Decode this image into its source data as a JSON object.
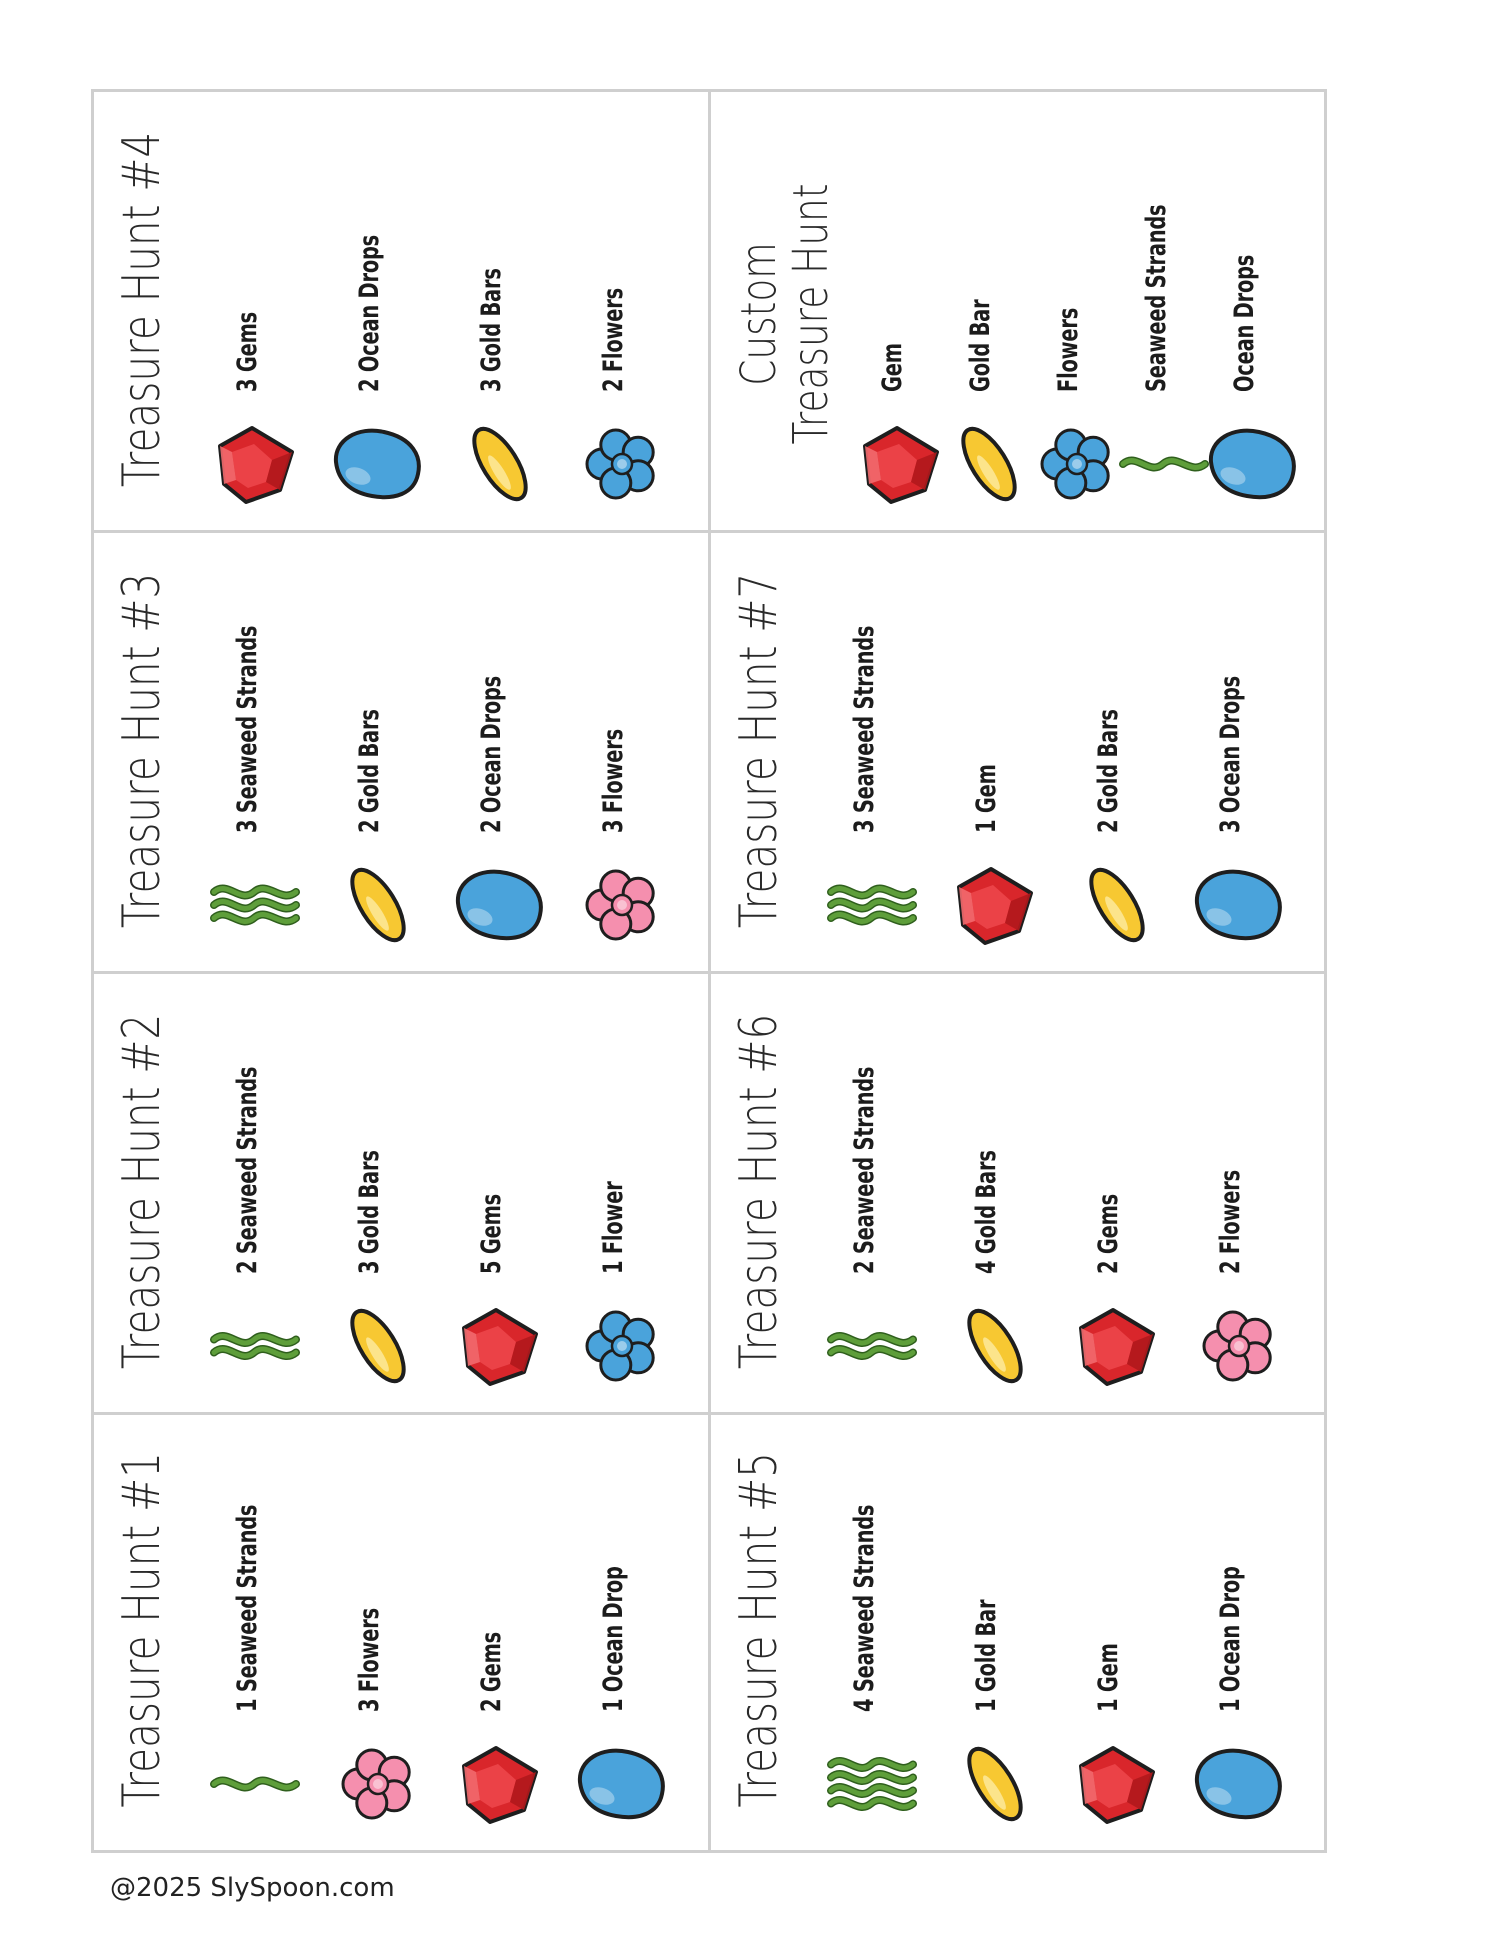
{
  "footer": "@2025 SlySpoon.com",
  "colors": {
    "gem": "#d9262b",
    "drop": "#4aa3db",
    "gold": "#f7c832",
    "flower_blue": "#4aa3db",
    "flower_pink": "#f58fae",
    "seaweed": "#5e9e3a",
    "border": "#cfcfcf"
  },
  "cards": [
    {
      "title": "Treasure Hunt #1",
      "items": [
        {
          "icon": "seaweed-1-icon",
          "label": "1 Seaweed Strands"
        },
        {
          "icon": "flower-pink-icon",
          "label": "3 Flowers"
        },
        {
          "icon": "gem-icon",
          "label": "2 Gems"
        },
        {
          "icon": "ocean-drop-icon",
          "label": "1 Ocean Drop"
        }
      ]
    },
    {
      "title": "Treasure Hunt #2",
      "items": [
        {
          "icon": "seaweed-2-icon",
          "label": "2 Seaweed Strands"
        },
        {
          "icon": "gold-bar-icon",
          "label": "3 Gold Bars"
        },
        {
          "icon": "gem-icon",
          "label": "5 Gems"
        },
        {
          "icon": "flower-blue-icon",
          "label": "1 Flower"
        }
      ]
    },
    {
      "title": "Treasure Hunt #3",
      "items": [
        {
          "icon": "seaweed-3-icon",
          "label": "3 Seaweed Strands"
        },
        {
          "icon": "gold-bar-icon",
          "label": "2 Gold Bars"
        },
        {
          "icon": "ocean-drop-icon",
          "label": "2 Ocean Drops"
        },
        {
          "icon": "flower-pink-icon",
          "label": "3 Flowers"
        }
      ]
    },
    {
      "title": "Treasure Hunt #4",
      "items": [
        {
          "icon": "gem-icon",
          "label": "3 Gems"
        },
        {
          "icon": "ocean-drop-icon",
          "label": "2 Ocean Drops"
        },
        {
          "icon": "gold-bar-icon",
          "label": "3 Gold Bars"
        },
        {
          "icon": "flower-blue-icon",
          "label": "2 Flowers"
        }
      ]
    },
    {
      "title": "Treasure Hunt #5",
      "items": [
        {
          "icon": "seaweed-4-icon",
          "label": "4 Seaweed Strands"
        },
        {
          "icon": "gold-bar-icon",
          "label": "1 Gold Bar"
        },
        {
          "icon": "gem-icon",
          "label": "1 Gem"
        },
        {
          "icon": "ocean-drop-icon",
          "label": "1 Ocean Drop"
        }
      ]
    },
    {
      "title": "Treasure Hunt #6",
      "items": [
        {
          "icon": "seaweed-2-icon",
          "label": "2 Seaweed Strands"
        },
        {
          "icon": "gold-bar-icon",
          "label": "4 Gold Bars"
        },
        {
          "icon": "gem-icon",
          "label": "2 Gems"
        },
        {
          "icon": "flower-pink-icon",
          "label": "2 Flowers"
        }
      ]
    },
    {
      "title": "Treasure Hunt #7",
      "items": [
        {
          "icon": "seaweed-3-icon",
          "label": "3 Seaweed Strands"
        },
        {
          "icon": "gem-icon",
          "label": "1 Gem"
        },
        {
          "icon": "gold-bar-icon",
          "label": "2 Gold Bars"
        },
        {
          "icon": "ocean-drop-icon",
          "label": "3 Ocean Drops"
        }
      ]
    },
    {
      "title_lines": [
        "Custom",
        "Treasure Hunt"
      ],
      "items": [
        {
          "icon": "gem-icon",
          "label": "Gem"
        },
        {
          "icon": "gold-bar-icon",
          "label": "Gold Bar"
        },
        {
          "icon": "flower-blue-icon",
          "label": "Flowers"
        },
        {
          "icon": "seaweed-1-icon",
          "label": "Seaweed Strands"
        },
        {
          "icon": "ocean-drop-icon",
          "label": "Ocean Drops"
        }
      ]
    }
  ]
}
